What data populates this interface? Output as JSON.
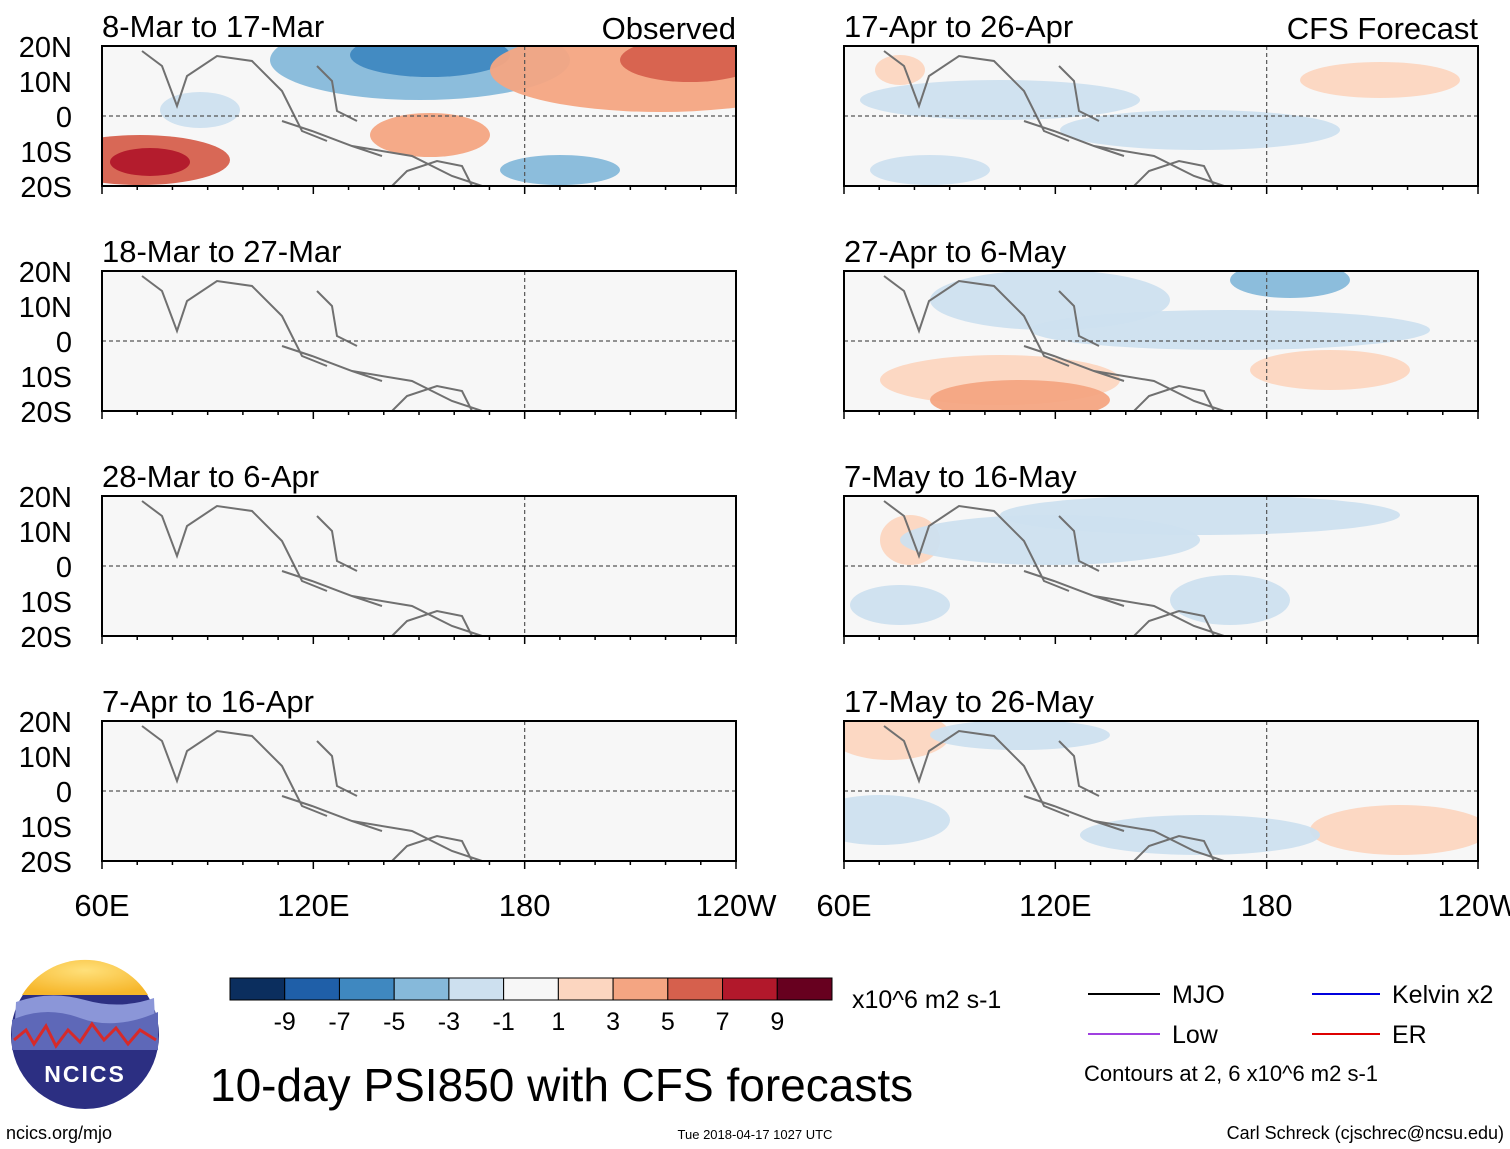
{
  "title": "10-day PSI850 with CFS forecasts",
  "chart_data": {
    "type": "heatmap",
    "variable": "PSI850",
    "columns": [
      {
        "header": "Observed",
        "panels": [
          {
            "period": "8-Mar to 17-Mar"
          },
          {
            "period": "18-Mar to 27-Mar"
          },
          {
            "period": "28-Mar to 6-Apr"
          },
          {
            "period": "7-Apr to 16-Apr"
          }
        ]
      },
      {
        "header": "CFS Forecast",
        "panels": [
          {
            "period": "17-Apr to 26-Apr"
          },
          {
            "period": "27-Apr to 6-May"
          },
          {
            "period": "7-May to 16-May"
          },
          {
            "period": "17-May to 26-May"
          }
        ]
      }
    ],
    "y_ticks": [
      "20N",
      "10N",
      "0",
      "10S",
      "20S"
    ],
    "x_ticks": [
      "60E",
      "120E",
      "180",
      "120W"
    ],
    "ylim": [
      -20,
      20
    ],
    "xlim": [
      60,
      240
    ],
    "colorbar": {
      "ticks": [
        "-9",
        "-7",
        "-5",
        "-3",
        "-1",
        "1",
        "3",
        "5",
        "7",
        "9"
      ],
      "colors": [
        "#0b2e5e",
        "#1f5fa8",
        "#3f88c0",
        "#86b9da",
        "#cde0ef",
        "#f7f7f7",
        "#fcd6c0",
        "#f4a582",
        "#d6604d",
        "#b2182b",
        "#67001f"
      ],
      "units": "x10^6 m2 s-1"
    },
    "legend": [
      {
        "label": "MJO",
        "color": "#000000"
      },
      {
        "label": "Kelvin x2",
        "color": "#0000dd"
      },
      {
        "label": "Low",
        "color": "#a040e0"
      },
      {
        "label": "ER",
        "color": "#dd0000"
      }
    ],
    "contour_note": "Contours at 2, 6 x10^6 m2 s-1"
  },
  "logo_text": "NCICS",
  "footer": {
    "left": "ncics.org/mjo",
    "center": "Tue 2018-04-17 1027 UTC",
    "right": "Carl Schreck (cjschrec@ncsu.edu)"
  }
}
